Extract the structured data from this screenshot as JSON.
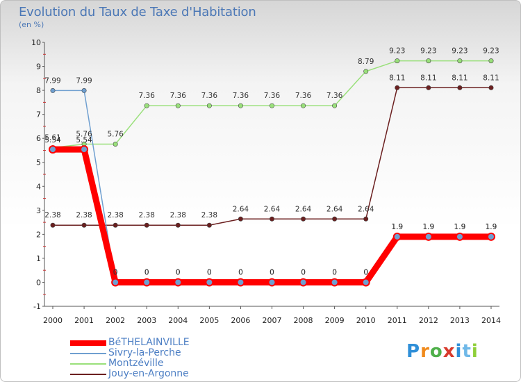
{
  "header": {
    "title": "Evolution du Taux de Taxe d'Habitation",
    "unit": "(en %)"
  },
  "logo": {
    "text": "Proxiti"
  },
  "colors": {
    "bethelainville": "#ff0000",
    "sivry": "#6f9fd0",
    "montzeville": "#99e07a",
    "jouy": "#6b1f1f"
  },
  "chart_data": {
    "type": "line",
    "title": "Evolution du Taux de Taxe d'Habitation",
    "ylabel": "(en %)",
    "xlabel": "",
    "ylim": [
      -1,
      10
    ],
    "yticks": [
      -1,
      0,
      1,
      2,
      3,
      4,
      5,
      6,
      7,
      8,
      9,
      10
    ],
    "x": [
      2000,
      2001,
      2002,
      2003,
      2004,
      2005,
      2006,
      2007,
      2008,
      2009,
      2010,
      2011,
      2012,
      2013,
      2014
    ],
    "grid": false,
    "legend": "bottom-left",
    "series": [
      {
        "name": "BéTHELAINVILLE",
        "color": "#ff0000",
        "values": [
          5.54,
          5.54,
          0,
          0,
          0,
          0,
          0,
          0,
          0,
          0,
          0,
          1.9,
          1.9,
          1.9,
          1.9
        ],
        "labels": [
          "5.54",
          "5.54",
          "0",
          "0",
          "0",
          "0",
          "0",
          "0",
          "0",
          "0",
          "0",
          "1.9",
          "1.9",
          "1.9",
          "1.9"
        ]
      },
      {
        "name": "Sivry-la-Perche",
        "color": "#6f9fd0",
        "values": [
          7.99,
          7.99,
          0,
          0,
          0,
          0,
          0,
          0,
          0,
          0,
          0,
          1.9,
          1.9,
          1.9,
          1.9
        ],
        "labels": [
          "7.99",
          "7.99",
          "0",
          "0",
          "0",
          "0",
          "0",
          "0",
          "0",
          "0",
          "0",
          "1.9",
          "1.9",
          "1.9",
          "1.9"
        ]
      },
      {
        "name": "Montzéville",
        "color": "#99e07a",
        "values": [
          5.61,
          5.76,
          5.76,
          7.36,
          7.36,
          7.36,
          7.36,
          7.36,
          7.36,
          7.36,
          8.79,
          9.23,
          9.23,
          9.23,
          9.23
        ],
        "labels": [
          "5.61",
          "5.76",
          "5.76",
          "7.36",
          "7.36",
          "7.36",
          "7.36",
          "7.36",
          "7.36",
          "7.36",
          "8.79",
          "9.23",
          "9.23",
          "9.23",
          "9.23"
        ]
      },
      {
        "name": "Jouy-en-Argonne",
        "color": "#6b1f1f",
        "values": [
          2.38,
          2.38,
          2.38,
          2.38,
          2.38,
          2.38,
          2.64,
          2.64,
          2.64,
          2.64,
          2.64,
          8.11,
          8.11,
          8.11,
          8.11
        ],
        "labels": [
          "2.38",
          "2.38",
          "2.38",
          "2.38",
          "2.38",
          "2.38",
          "2.64",
          "2.64",
          "2.64",
          "2.64",
          "2.64",
          "8.11",
          "8.11",
          "8.11",
          "8.11"
        ]
      }
    ]
  }
}
